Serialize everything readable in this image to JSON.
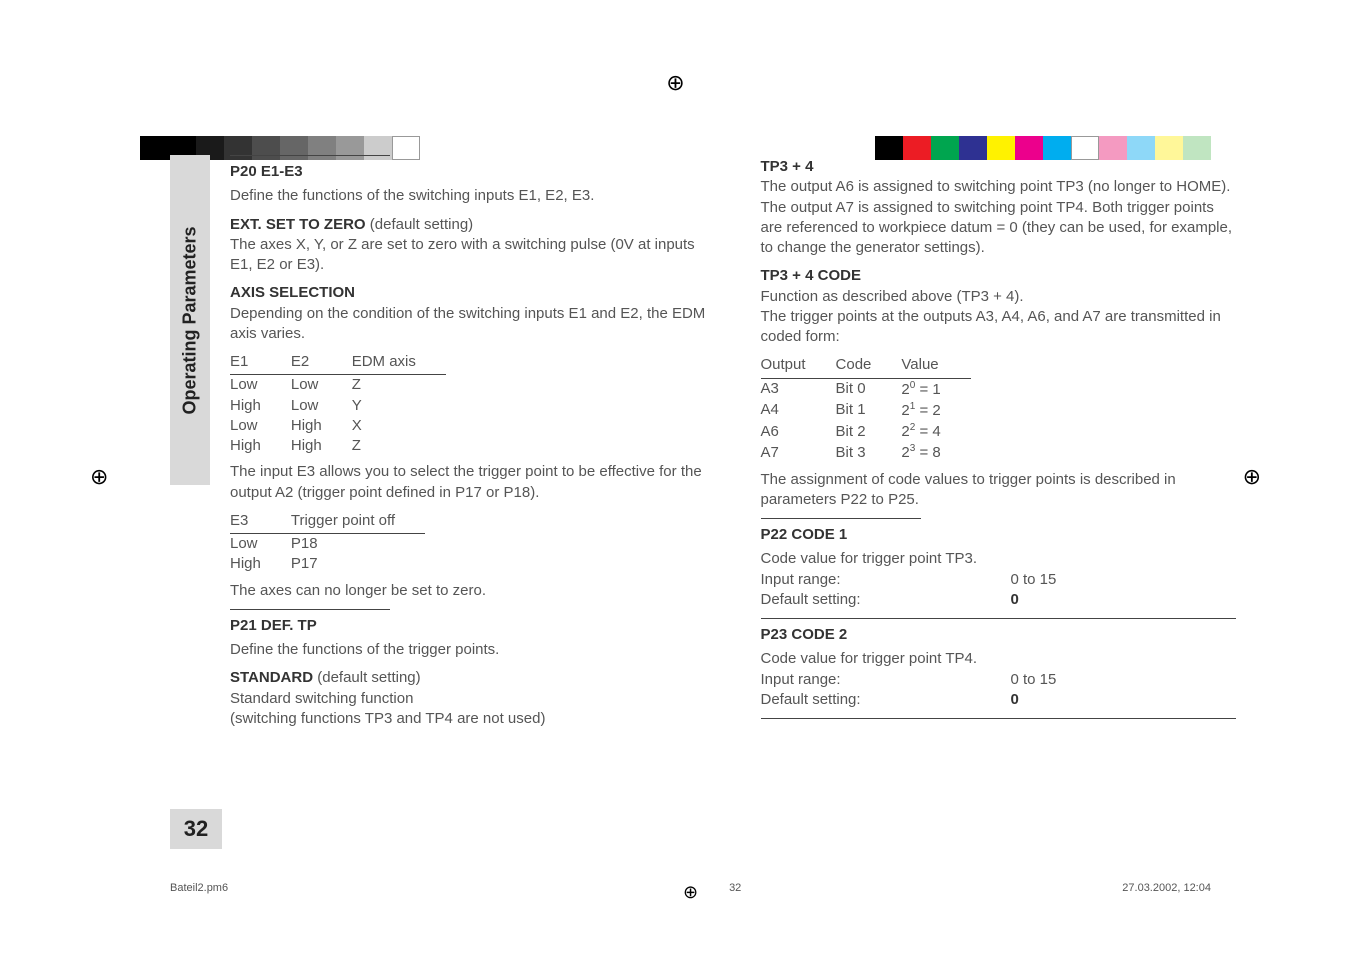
{
  "colorbar_left": [
    "#000000",
    "#000000",
    "#1a1a1a",
    "#333333",
    "#4d4d4d",
    "#666666",
    "#808080",
    "#999999",
    "#cccccc",
    "#ffffff"
  ],
  "colorbar_right": [
    "#000000",
    "#ec1c24",
    "#00a54f",
    "#2e3192",
    "#fff200",
    "#ec008c",
    "#00adef",
    "#ffffff",
    "#f49ac1",
    "#8ed8f8",
    "#fff799",
    "#c0e5c1"
  ],
  "sidetab": "Operating Parameters",
  "page_number": "32",
  "footer": {
    "left": "Bateil2.pm6",
    "mid": "32",
    "right": "27.03.2002, 12:04"
  },
  "left": {
    "h_p20": "P20   E1-E3",
    "p20_intro": "Define the functions of the switching inputs E1, E2, E3.",
    "ext_title": "EXT. SET TO ZERO",
    "ext_tail": " (default setting)",
    "ext_body": "The axes X, Y, or Z are set to zero with a switching pulse (0V at inputs E1, E2 or E3).",
    "axis_title": "AXIS SELECTION",
    "axis_body": "Depending on the condition of the switching inputs E1 and E2, the EDM axis varies.",
    "t1_head": [
      "E1",
      "E2",
      "EDM axis"
    ],
    "t1_rows": [
      [
        "Low",
        "Low",
        "Z"
      ],
      [
        "High",
        "Low",
        "Y"
      ],
      [
        "Low",
        "High",
        "X"
      ],
      [
        "High",
        "High",
        "Z"
      ]
    ],
    "e3_body": "The input E3 allows you to select the trigger point to be effective for the output A2 (trigger point defined in P17 or P18).",
    "t2_head": [
      "E3",
      "Trigger point off"
    ],
    "t2_rows": [
      [
        "Low",
        "P18"
      ],
      [
        "High",
        "P17"
      ]
    ],
    "axes_no_zero": "The axes can no longer be set to zero.",
    "h_p21": "P21   DEF. TP",
    "p21_intro": "Define the functions of the trigger points.",
    "std_title": "STANDARD",
    "std_tail": " (default setting)",
    "std_line1": "Standard switching function",
    "std_line2": "(switching functions TP3 and TP4 are not used)"
  },
  "right": {
    "tp34_title": "TP3 + 4",
    "tp34_body": "The output A6 is assigned to switching point TP3 (no longer to HOME). The output A7 is assigned to switching point TP4. Both trigger points are referenced to workpiece datum = 0 (they can be used, for example, to change the generator settings).",
    "tp34c_title": "TP3 + 4 CODE",
    "tp34c_l1": "Function as described above (TP3 + 4).",
    "tp34c_l2": "The trigger points at the outputs A3, A4, A6, and A7 are transmitted in coded form:",
    "t3_head": [
      "Output",
      "Code",
      "Value"
    ],
    "t3_rows": [
      {
        "o": "A3",
        "c": "Bit 0",
        "b": "0",
        "v": "1"
      },
      {
        "o": "A4",
        "c": "Bit 1",
        "b": "1",
        "v": "2"
      },
      {
        "o": "A6",
        "c": "Bit 2",
        "b": "2",
        "v": "4"
      },
      {
        "o": "A7",
        "c": "Bit 3",
        "b": "3",
        "v": "8"
      }
    ],
    "assign_body": "The assignment of code values to trigger points is described in parameters P22 to P25.",
    "h_p22": "P22   CODE 1",
    "p22_l1": "Code value for trigger point TP3.",
    "p22_ir_k": "Input range:",
    "p22_ir_v": "0 to 15",
    "p22_ds_k": "Default setting:",
    "p22_ds_v": "0",
    "h_p23": "P23   CODE 2",
    "p23_l1": "Code value for trigger point TP4.",
    "p23_ir_k": "Input range:",
    "p23_ir_v": "0 to 15",
    "p23_ds_k": "Default setting:",
    "p23_ds_v": "0"
  }
}
